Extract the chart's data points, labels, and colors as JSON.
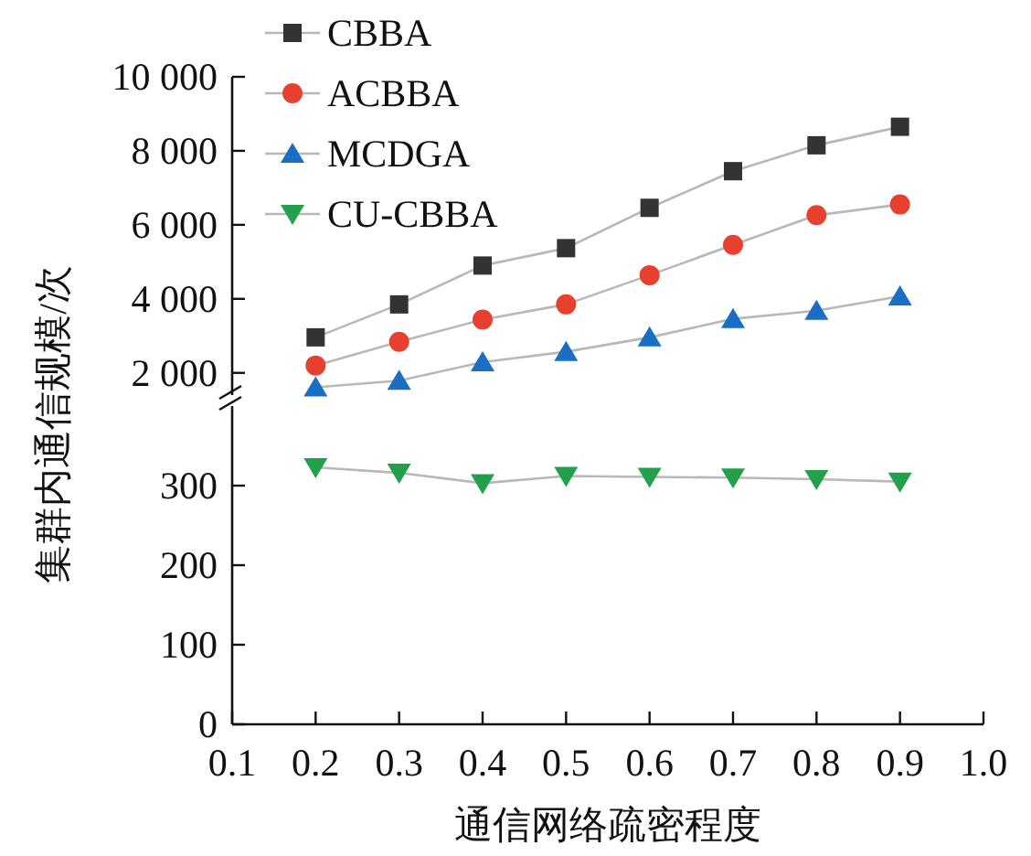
{
  "chart_data": [
    {
      "type": "line",
      "ylabel": "集群内通信规模/次",
      "x": [
        0.2,
        0.3,
        0.4,
        0.5,
        0.6,
        0.7,
        0.8,
        0.9
      ],
      "xlim": [
        0.1,
        1.0
      ],
      "ylim": [
        1400,
        10000
      ],
      "yticks": [
        {
          "value": 2000,
          "label": "2 000"
        },
        {
          "value": 4000,
          "label": "4 000"
        },
        {
          "value": 6000,
          "label": "6 000"
        },
        {
          "value": 8000,
          "label": "8 000"
        },
        {
          "value": 10000,
          "label": "10 000"
        }
      ],
      "tick_labels": "y",
      "legend": "top left",
      "series": [
        {
          "name": "CBBA",
          "color": "#333333",
          "marker": "square",
          "values": [
            2960,
            3850,
            4900,
            5370,
            6460,
            7450,
            8150,
            8650
          ]
        },
        {
          "name": "ACBBA",
          "color": "#e8402f",
          "marker": "circle",
          "values": [
            2200,
            2840,
            3440,
            3850,
            4640,
            5460,
            6260,
            6550
          ]
        },
        {
          "name": "MCDGA",
          "color": "#1a6fc4",
          "marker": "triangle",
          "values": [
            1610,
            1790,
            2290,
            2570,
            2960,
            3460,
            3680,
            4070
          ]
        }
      ]
    },
    {
      "type": "line",
      "xlabel": "通信网络疏密程度",
      "x": [
        0.2,
        0.3,
        0.4,
        0.5,
        0.6,
        0.7,
        0.8,
        0.9
      ],
      "xlim": [
        0.1,
        1.0
      ],
      "ylim": [
        0,
        400
      ],
      "xticks": [
        0.1,
        0.2,
        0.3,
        0.4,
        0.5,
        0.6,
        0.7,
        0.8,
        0.9,
        {
          "value": 1.0,
          "label": "1.0"
        }
      ],
      "yticks": [
        0,
        100,
        200,
        300
      ],
      "legend": "top left",
      "series": [
        {
          "name": "CU-CBBA",
          "color": "#22a04b",
          "marker": "triangle-down",
          "values": [
            323,
            316,
            303,
            312,
            311,
            310,
            308,
            305
          ]
        }
      ]
    }
  ]
}
